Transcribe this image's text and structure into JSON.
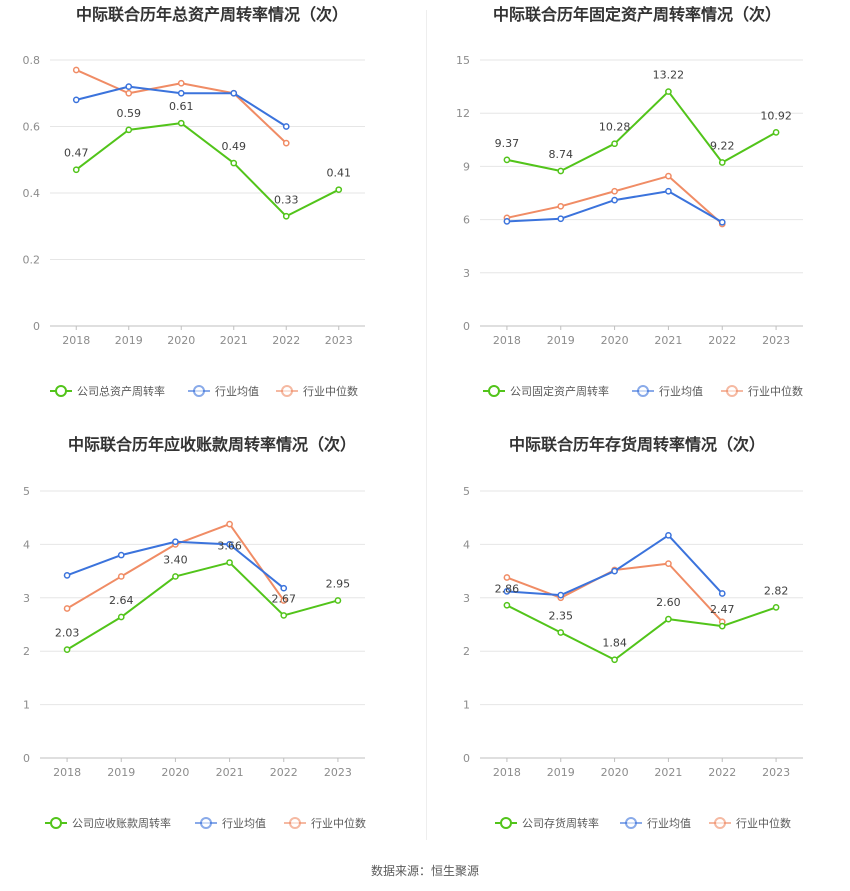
{
  "source_label": "数据来源：恒生聚源",
  "colors": {
    "company": "#52c41a",
    "avg": "#3b73dc",
    "median": "#f08c65"
  },
  "chart_data": [
    {
      "type": "line",
      "title": "中际联合历年总资产周转率情况（次）",
      "x": [
        "2018",
        "2019",
        "2020",
        "2021",
        "2022",
        "2023"
      ],
      "ylim": [
        0,
        0.8
      ],
      "yticks": [
        "0",
        "0.2",
        "0.4",
        "0.6",
        "0.8"
      ],
      "ytick_values": [
        0,
        0.2,
        0.4,
        0.6,
        0.8
      ],
      "legend_position": "bottom",
      "series": [
        {
          "name": "公司总资产周转率",
          "color": "#52c41a",
          "values": [
            0.47,
            0.59,
            0.61,
            0.49,
            0.33,
            0.41
          ],
          "labels": [
            "0.47",
            "0.59",
            "0.61",
            "0.49",
            "0.33",
            "0.41"
          ]
        },
        {
          "name": "行业均值",
          "color": "#3b73dc",
          "values": [
            0.68,
            0.72,
            0.7,
            0.7,
            0.6,
            null
          ]
        },
        {
          "name": "行业中位数",
          "color": "#f08c65",
          "values": [
            0.77,
            0.7,
            0.73,
            0.7,
            0.55,
            null
          ]
        }
      ]
    },
    {
      "type": "line",
      "title": "中际联合历年固定资产周转率情况（次）",
      "x": [
        "2018",
        "2019",
        "2020",
        "2021",
        "2022",
        "2023"
      ],
      "ylim": [
        0,
        15
      ],
      "yticks": [
        "0",
        "3",
        "6",
        "9",
        "12",
        "15"
      ],
      "ytick_values": [
        0,
        3,
        6,
        9,
        12,
        15
      ],
      "legend_position": "bottom",
      "series": [
        {
          "name": "公司固定资产周转率",
          "color": "#52c41a",
          "values": [
            9.37,
            8.74,
            10.28,
            13.22,
            9.22,
            10.92
          ],
          "labels": [
            "9.37",
            "8.74",
            "10.28",
            "13.22",
            "9.22",
            "10.92"
          ]
        },
        {
          "name": "行业均值",
          "color": "#3b73dc",
          "values": [
            5.9,
            6.05,
            7.1,
            7.6,
            5.85,
            null
          ]
        },
        {
          "name": "行业中位数",
          "color": "#f08c65",
          "values": [
            6.1,
            6.75,
            7.6,
            8.45,
            5.75,
            null
          ]
        }
      ]
    },
    {
      "type": "line",
      "title": "中际联合历年应收账款周转率情况（次）",
      "x": [
        "2018",
        "2019",
        "2020",
        "2021",
        "2022",
        "2023"
      ],
      "ylim": [
        0,
        5
      ],
      "yticks": [
        "0",
        "1",
        "2",
        "3",
        "4",
        "5"
      ],
      "ytick_values": [
        0,
        1,
        2,
        3,
        4,
        5
      ],
      "legend_position": "bottom",
      "series": [
        {
          "name": "公司应收账款周转率",
          "color": "#52c41a",
          "values": [
            2.03,
            2.64,
            3.4,
            3.66,
            2.67,
            2.95
          ],
          "labels": [
            "2.03",
            "2.64",
            "3.40",
            "3.66",
            "2.67",
            "2.95"
          ]
        },
        {
          "name": "行业均值",
          "color": "#3b73dc",
          "values": [
            3.42,
            3.8,
            4.05,
            4.0,
            3.18,
            null
          ]
        },
        {
          "name": "行业中位数",
          "color": "#f08c65",
          "values": [
            2.8,
            3.4,
            4.0,
            4.38,
            2.95,
            null
          ]
        }
      ]
    },
    {
      "type": "line",
      "title": "中际联合历年存货周转率情况（次）",
      "x": [
        "2018",
        "2019",
        "2020",
        "2021",
        "2022",
        "2023"
      ],
      "ylim": [
        0,
        5
      ],
      "yticks": [
        "0",
        "1",
        "2",
        "3",
        "4",
        "5"
      ],
      "ytick_values": [
        0,
        1,
        2,
        3,
        4,
        5
      ],
      "legend_position": "bottom",
      "series": [
        {
          "name": "公司存货周转率",
          "color": "#52c41a",
          "values": [
            2.86,
            2.35,
            1.84,
            2.6,
            2.47,
            2.82
          ],
          "labels": [
            "2.86",
            "2.35",
            "1.84",
            "2.60",
            "2.47",
            "2.82"
          ]
        },
        {
          "name": "行业均值",
          "color": "#3b73dc",
          "values": [
            3.12,
            3.05,
            3.5,
            4.17,
            3.08,
            null
          ]
        },
        {
          "name": "行业中位数",
          "color": "#f08c65",
          "values": [
            3.38,
            3.0,
            3.52,
            3.64,
            2.55,
            null
          ]
        }
      ]
    }
  ]
}
